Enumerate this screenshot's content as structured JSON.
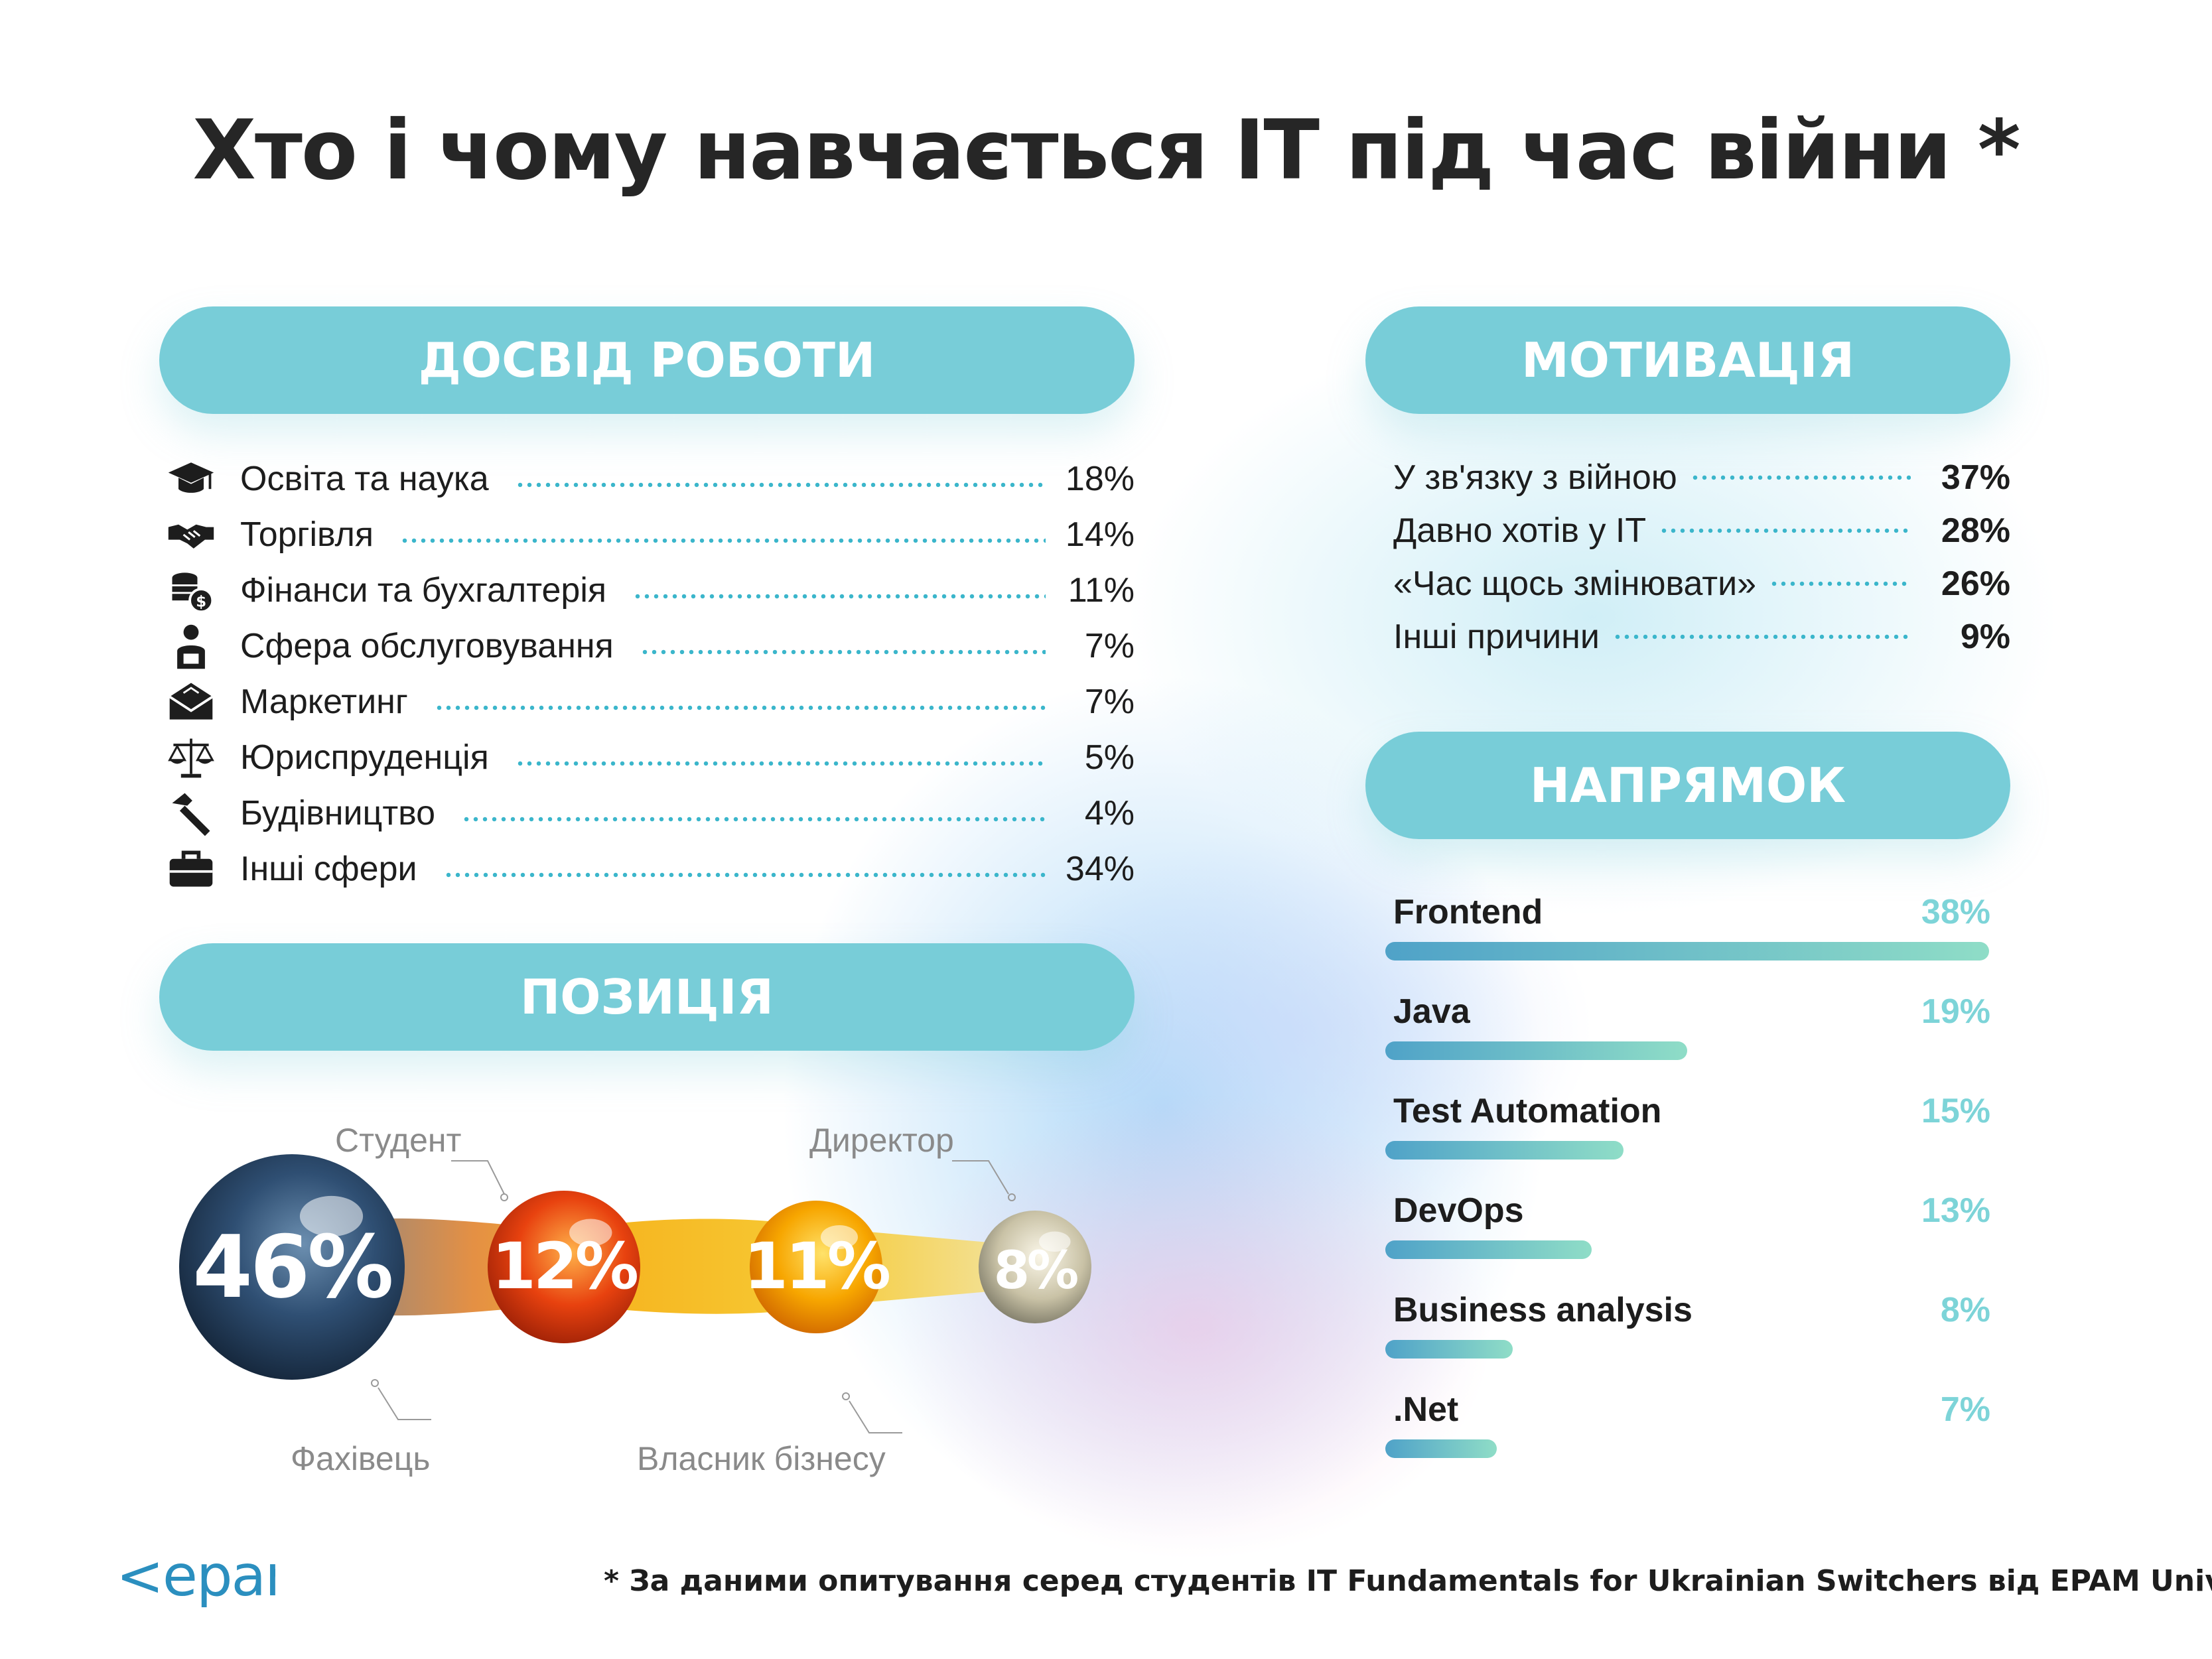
{
  "title": "Хто і чому навчається IT під час війни *",
  "sections": {
    "experience": "ДОСВІД РОБОТИ",
    "motivation": "МОТИВАЦІЯ",
    "position": "ПОЗИЦІЯ",
    "direction": "НАПРЯМОК"
  },
  "colors": {
    "pill": "#78cdd8",
    "leader_dots": "#3bb6cb",
    "bar_start": "#4fa2c8",
    "bar_end": "#8fddc7",
    "direction_value": "#7dd4d8"
  },
  "experience_icons": [
    "graduation-cap-icon",
    "handshake-icon",
    "coins-icon",
    "service-worker-icon",
    "envelope-icon",
    "scales-icon",
    "hammer-icon",
    "briefcase-icon"
  ],
  "chart_data": [
    {
      "type": "table",
      "title": "ДОСВІД РОБОТИ",
      "rows": [
        {
          "label": "Освіта та наука",
          "value": "18%"
        },
        {
          "label": "Торгівля",
          "value": "14%"
        },
        {
          "label": "Фінанси та бухгалтерія",
          "value": "11%"
        },
        {
          "label": "Сфера обслуговування",
          "value": "7%"
        },
        {
          "label": "Маркетинг",
          "value": "7%"
        },
        {
          "label": "Юриспруденція",
          "value": "5%"
        },
        {
          "label": "Будівництво",
          "value": "4%"
        },
        {
          "label": "Інші сфери",
          "value": "34%"
        }
      ]
    },
    {
      "type": "table",
      "title": "МОТИВАЦІЯ",
      "rows": [
        {
          "label": "У зв'язку з війною",
          "value": "37%"
        },
        {
          "label": "Давно хотів у IT",
          "value": "28%"
        },
        {
          "label": "«Час щось змінювати»",
          "value": "26%"
        },
        {
          "label": "Інші причини",
          "value": "9%"
        }
      ]
    },
    {
      "type": "bar",
      "title": "НАПРЯМОК",
      "categories": [
        "Frontend",
        "Java",
        "Test Automation",
        "DevOps",
        "Business analysis",
        ".Net"
      ],
      "values": [
        38,
        19,
        15,
        13,
        8,
        7
      ],
      "labels": [
        "38%",
        "19%",
        "15%",
        "13%",
        "8%",
        "7%"
      ]
    },
    {
      "type": "bubble",
      "title": "ПОЗИЦІЯ",
      "items": [
        {
          "label": "Фахівець",
          "value": 46,
          "text": "46%",
          "color": "#2f4f73"
        },
        {
          "label": "Студент",
          "value": 12,
          "text": "12%",
          "color": "#e8420f"
        },
        {
          "label": "Власник бізнесу",
          "value": 11,
          "text": "11%",
          "color": "#f7a600"
        },
        {
          "label": "Директор",
          "value": 8,
          "text": "8%",
          "color": "#c9c2a6"
        }
      ]
    }
  ],
  "footer": {
    "note": "* За даними опитування серед студентів IT Fundamentals for Ukrainian Switchers від EPAM University",
    "logo": "<epam>"
  }
}
